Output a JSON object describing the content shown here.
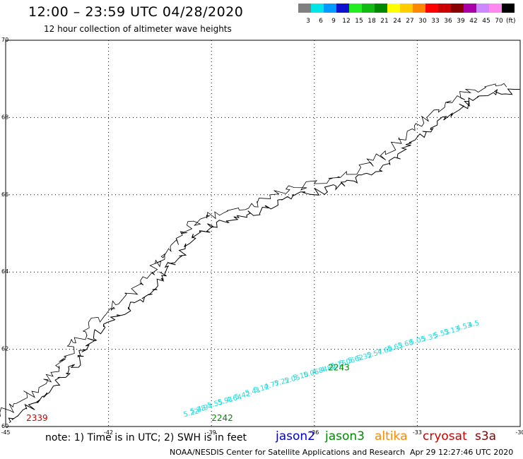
{
  "header": {
    "title": "12:00 – 23:59 UTC 04/28/2020",
    "subtitle": "12 hour collection of altimeter wave heights"
  },
  "legend": {
    "unit": "(ft)",
    "items": [
      {
        "label": "3",
        "color": "#808080"
      },
      {
        "label": "6",
        "color": "#00e5e5"
      },
      {
        "label": "9",
        "color": "#0099ff"
      },
      {
        "label": "12",
        "color": "#1010d0"
      },
      {
        "label": "15",
        "color": "#22ee22"
      },
      {
        "label": "18",
        "color": "#11bb11"
      },
      {
        "label": "21",
        "color": "#008800"
      },
      {
        "label": "24",
        "color": "#ffff00"
      },
      {
        "label": "27",
        "color": "#ffcc00"
      },
      {
        "label": "30",
        "color": "#ff8800"
      },
      {
        "label": "33",
        "color": "#ff0000"
      },
      {
        "label": "36",
        "color": "#cc0000"
      },
      {
        "label": "39",
        "color": "#880000"
      },
      {
        "label": "42",
        "color": "#aa00aa"
      },
      {
        "label": "45",
        "color": "#cc88ff"
      },
      {
        "label": "70",
        "color": "#ff88ee"
      },
      {
        "label": "",
        "color": "#000000"
      }
    ]
  },
  "map": {
    "lon_range": [
      -45,
      -30
    ],
    "lat_range": [
      60,
      70
    ],
    "lon_ticks": [
      "-45",
      "-42",
      "-39",
      "-36",
      "-33",
      "-30"
    ],
    "lat_ticks": [
      "60",
      "62",
      "64",
      "66",
      "68",
      "70"
    ],
    "grid": true,
    "track_color": "#22dddd",
    "track_values": [
      [
        "5.22",
        -39.8,
        60.25
      ],
      [
        "5.28",
        -39.6,
        60.33
      ],
      [
        "4.94",
        -39.4,
        60.38
      ],
      [
        "5.55",
        -39.1,
        60.48
      ],
      [
        "5.91",
        -38.8,
        60.56
      ],
      [
        "4.64",
        -38.55,
        60.62
      ],
      [
        "5.42",
        -38.3,
        60.7
      ],
      [
        "5.41",
        -38.0,
        60.8
      ],
      [
        "5.12",
        -37.75,
        60.88
      ],
      [
        "4.77",
        -37.45,
        60.97
      ],
      [
        "5.22",
        -37.15,
        61.05
      ],
      [
        "5.05",
        -36.85,
        61.12
      ],
      [
        "5.10",
        -36.6,
        61.2
      ],
      [
        "5.06",
        -36.3,
        61.27
      ],
      [
        "4.84",
        -36.05,
        61.34
      ],
      [
        "4.89",
        -35.8,
        61.4
      ],
      [
        "5.15",
        -35.5,
        61.5
      ],
      [
        "5.06",
        -35.25,
        61.57
      ],
      [
        "5.62",
        -35.0,
        61.64
      ],
      [
        "5.32",
        -34.75,
        61.7
      ],
      [
        "5.57",
        -34.45,
        61.78
      ],
      [
        "4.69",
        -34.15,
        61.86
      ],
      [
        "5.63",
        -33.85,
        61.95
      ],
      [
        "5.68",
        -33.55,
        62.03
      ],
      [
        "5.05",
        -33.2,
        62.12
      ],
      [
        "5.35",
        -32.85,
        62.2
      ],
      [
        "5.53",
        -32.5,
        62.3
      ],
      [
        "5.13",
        -32.2,
        62.38
      ],
      [
        "4.53",
        -31.85,
        62.48
      ],
      [
        "4.5",
        -31.5,
        62.56
      ]
    ],
    "cycle_labels": [
      {
        "text": "2242",
        "lon": -39.0,
        "lat": 60.15,
        "color": "#008800"
      },
      {
        "text": "2243",
        "lon": -35.6,
        "lat": 61.45,
        "color": "#008800"
      },
      {
        "text": "2339",
        "lon": -44.4,
        "lat": 60.15,
        "color": "#cc0000"
      }
    ],
    "coast_color": "#000000"
  },
  "footer": {
    "note": "note:  1) Time is in UTC;  2) SWH is in feet",
    "satellites": [
      {
        "name": "jason2",
        "color": "#0000cc"
      },
      {
        "name": "jason3",
        "color": "#008800"
      },
      {
        "name": "altika",
        "color": "#ff8800"
      },
      {
        "name": "cryosat",
        "color": "#cc0000"
      },
      {
        "name": "s3a",
        "color": "#880000"
      }
    ],
    "credit": "NOAA/NESDIS Center for Satellite Applications and Research",
    "timestamp": "Apr 29 12:27:46 UTC 2020"
  }
}
